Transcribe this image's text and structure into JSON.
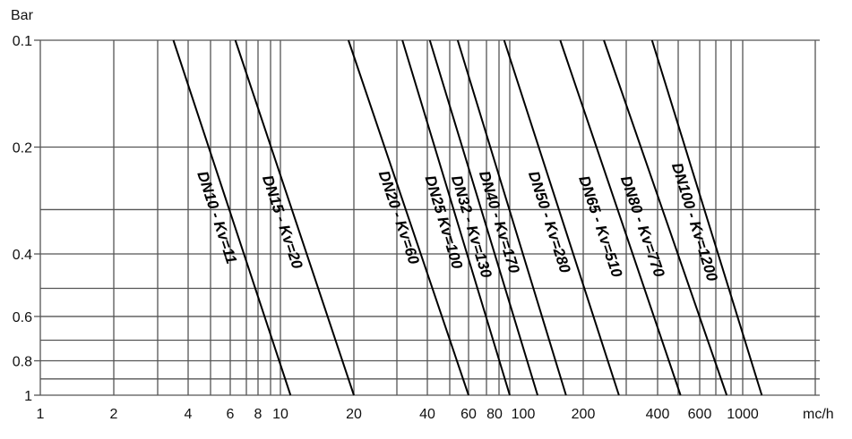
{
  "chart_data": {
    "type": "line",
    "x_scale": "log",
    "y_scale": "log",
    "xlabel": "mc/h",
    "ylabel": "Bar",
    "xlim": [
      1,
      2000
    ],
    "ylim": [
      0.1,
      1
    ],
    "grid": true,
    "x_ticks": [
      {
        "value": 1,
        "label": "1"
      },
      {
        "value": 2,
        "label": "2"
      },
      {
        "value": 4,
        "label": "4"
      },
      {
        "value": 6,
        "label": "6"
      },
      {
        "value": 8,
        "label": "8"
      },
      {
        "value": 10,
        "label": "10"
      },
      {
        "value": 20,
        "label": "20"
      },
      {
        "value": 40,
        "label": "40"
      },
      {
        "value": 60,
        "label": "60"
      },
      {
        "value": 80,
        "label": "80"
      },
      {
        "value": 100,
        "label": "100"
      },
      {
        "value": 200,
        "label": "200"
      },
      {
        "value": 400,
        "label": "400"
      },
      {
        "value": 600,
        "label": "600"
      },
      {
        "value": 1000,
        "label": "1000"
      }
    ],
    "x_gridlines": [
      1,
      2,
      3,
      4,
      5,
      6,
      7,
      8,
      9,
      10,
      20,
      30,
      40,
      50,
      60,
      70,
      80,
      100,
      200,
      300,
      400,
      500,
      600,
      700,
      800,
      1000,
      2000
    ],
    "y_ticks": [
      {
        "value": 1,
        "label": "1"
      },
      {
        "value": 0.8,
        "label": "0.8"
      },
      {
        "value": 0.6,
        "label": "0.6"
      },
      {
        "value": 0.4,
        "label": "0.4"
      },
      {
        "value": 0.2,
        "label": "0.2"
      },
      {
        "value": 0.1,
        "label": "0.1"
      }
    ],
    "y_gridlines": [
      1,
      0.9,
      0.8,
      0.7,
      0.6,
      0.5,
      0.4,
      0.3,
      0.2,
      0.1
    ],
    "series": [
      {
        "name": "DN10 - Kv=11",
        "kv": 11,
        "points": [
          {
            "x": 3.48,
            "y": 0.1
          },
          {
            "x": 11,
            "y": 1
          }
        ]
      },
      {
        "name": "DN15 - Kv=20",
        "kv": 20,
        "points": [
          {
            "x": 6.3,
            "y": 0.1
          },
          {
            "x": 20,
            "y": 1
          }
        ]
      },
      {
        "name": "DN20 - Kv=60",
        "kv": 60,
        "points": [
          {
            "x": 19,
            "y": 0.1
          },
          {
            "x": 60,
            "y": 1
          }
        ]
      },
      {
        "name": "DN25 Kv=100",
        "kv": 100,
        "points": [
          {
            "x": 31.6,
            "y": 0.1
          },
          {
            "x": 100,
            "y": 1
          }
        ]
      },
      {
        "name": "DN32 - Kv=130",
        "kv": 130,
        "points": [
          {
            "x": 41,
            "y": 0.1
          },
          {
            "x": 130,
            "y": 1
          }
        ]
      },
      {
        "name": "DN40 - Kv=170",
        "kv": 170,
        "points": [
          {
            "x": 54,
            "y": 0.1
          },
          {
            "x": 170,
            "y": 1
          }
        ]
      },
      {
        "name": "DN50 - Kv=280",
        "kv": 280,
        "points": [
          {
            "x": 89,
            "y": 0.1
          },
          {
            "x": 280,
            "y": 1
          }
        ]
      },
      {
        "name": "DN65 - Kv=510",
        "kv": 510,
        "points": [
          {
            "x": 161,
            "y": 0.1
          },
          {
            "x": 510,
            "y": 1
          }
        ]
      },
      {
        "name": "DN80 - Kv=770",
        "kv": 770,
        "points": [
          {
            "x": 243,
            "y": 0.1
          },
          {
            "x": 770,
            "y": 1
          }
        ]
      },
      {
        "name": "DN100 - Kv=1200",
        "kv": 1200,
        "points": [
          {
            "x": 380,
            "y": 0.1
          },
          {
            "x": 1200,
            "y": 1
          }
        ]
      }
    ],
    "colors": {
      "lines": "#000000",
      "grid": "#555555"
    }
  }
}
